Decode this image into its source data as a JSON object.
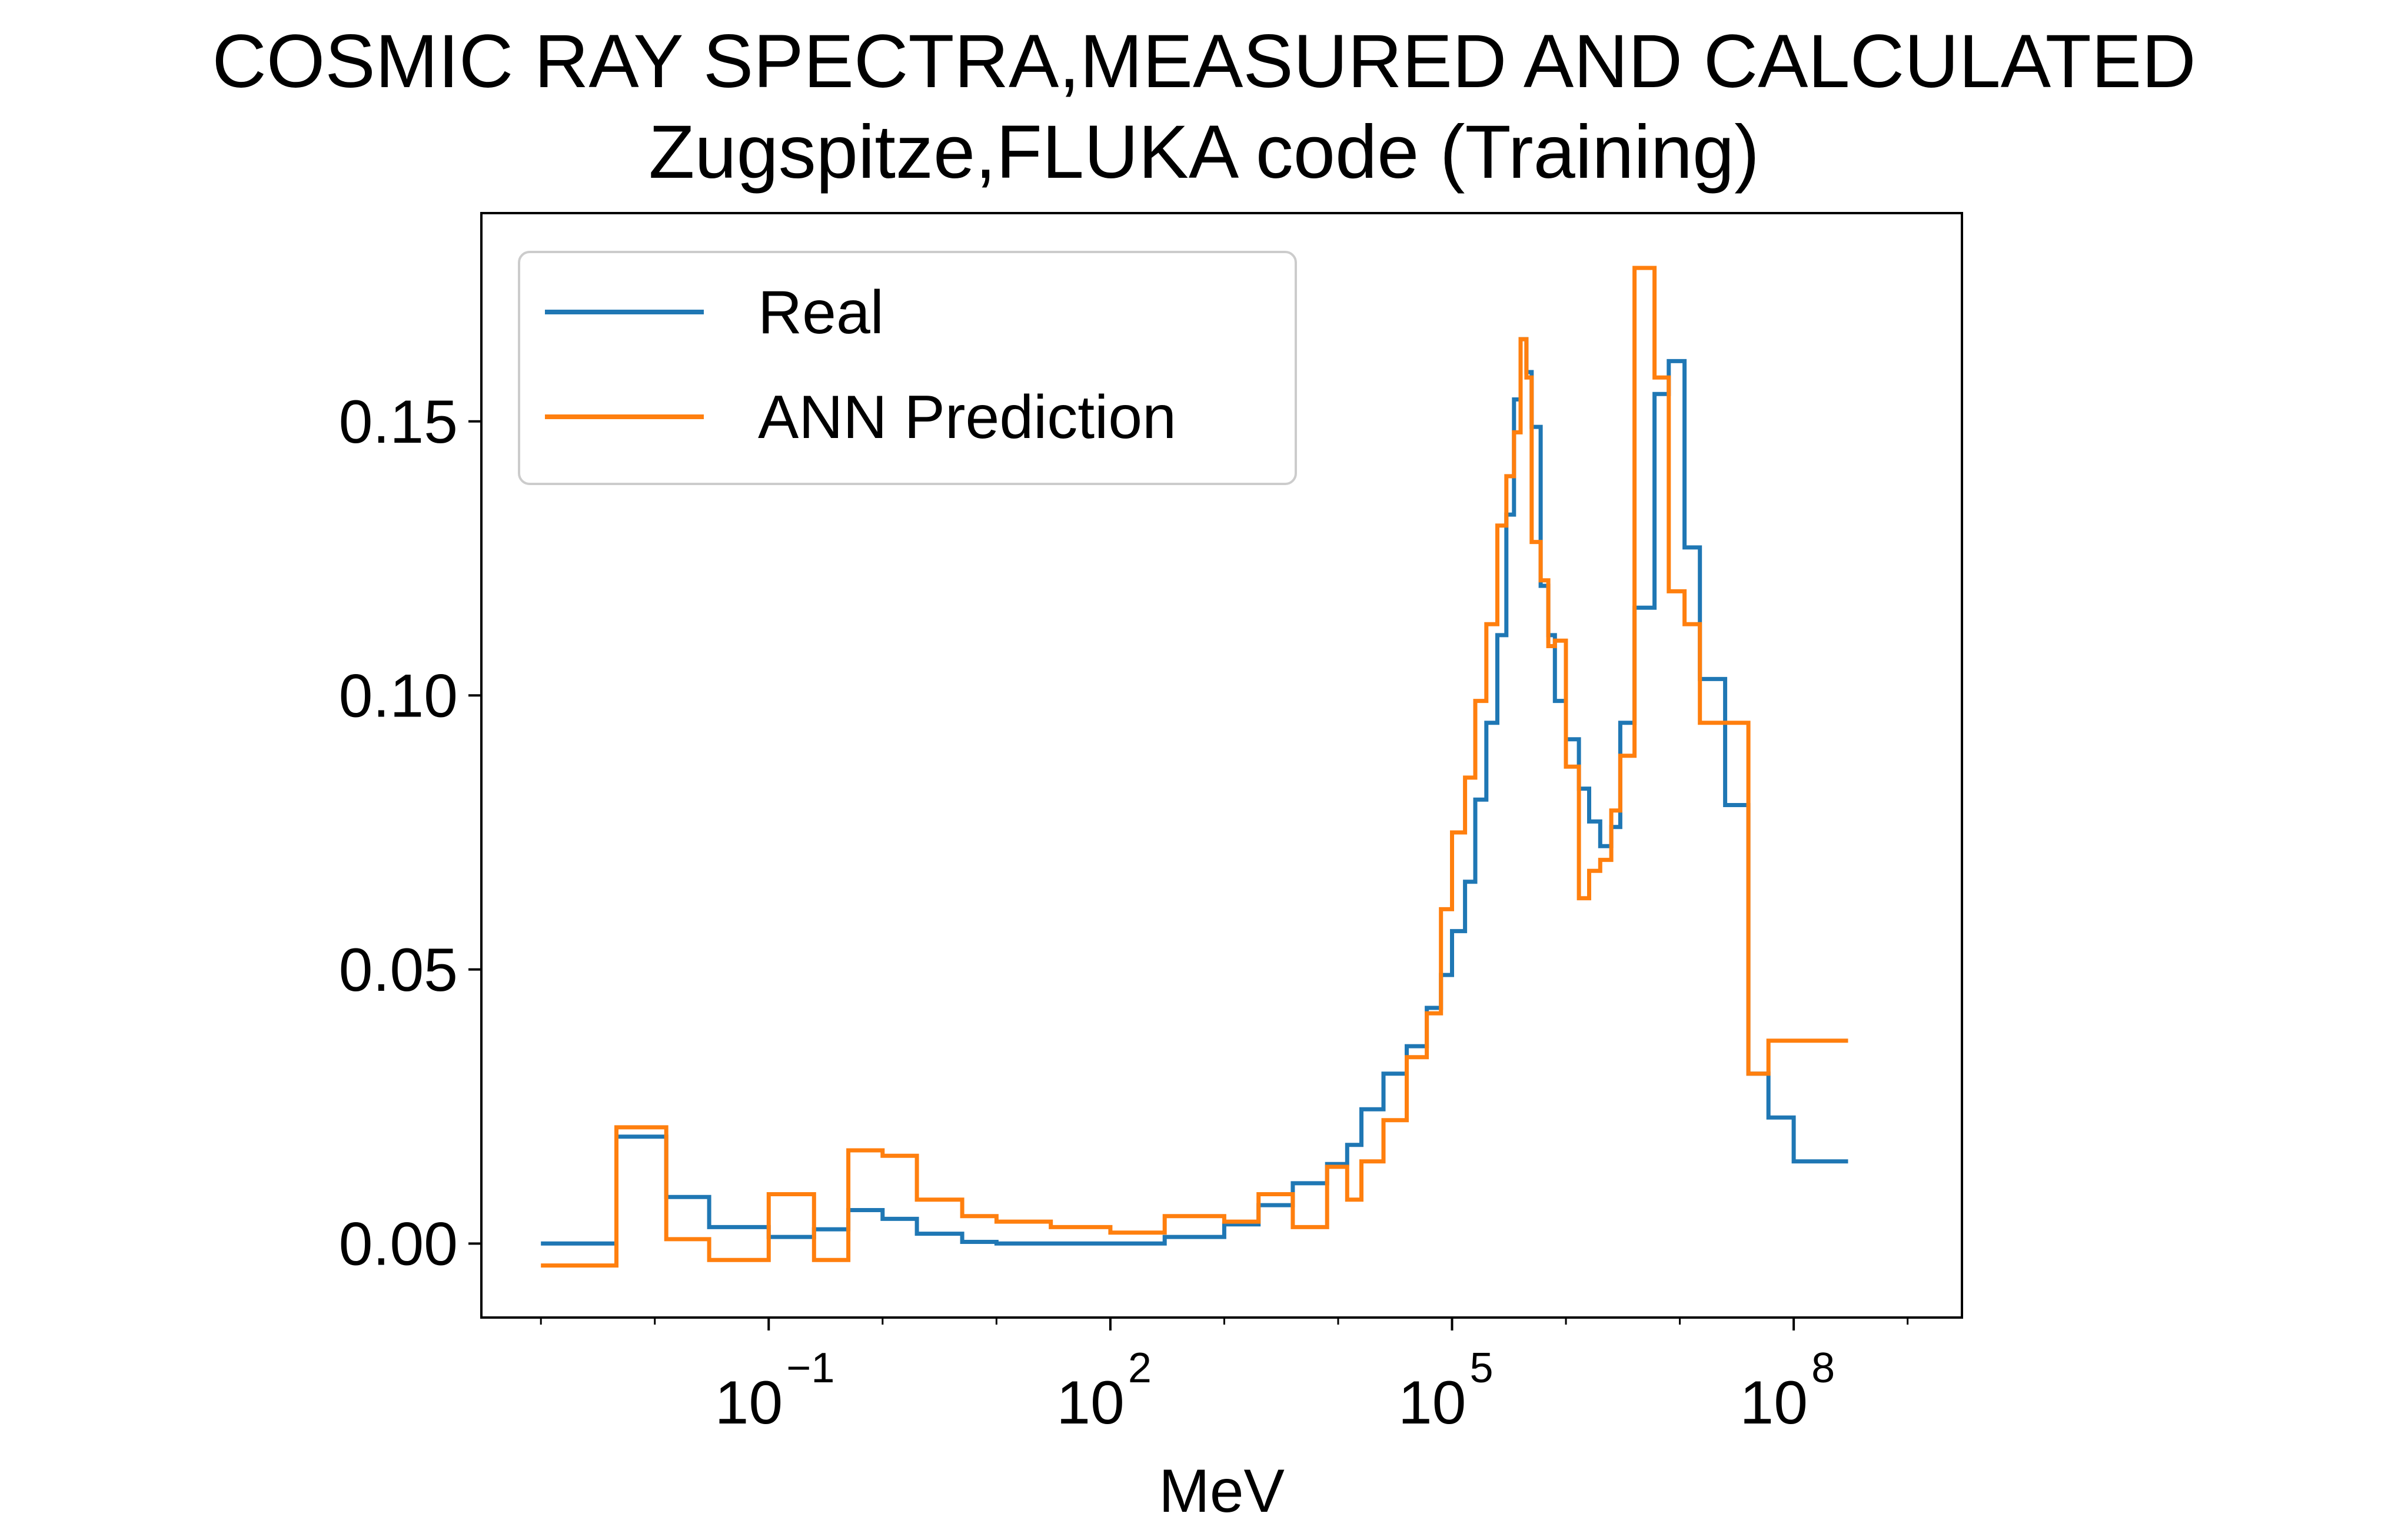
{
  "chart_data": {
    "type": "line",
    "step": "post",
    "title": "COSMIC RAY SPECTRA,MEASURED AND CALCULATED",
    "subtitle": "Zugspitze,FLUKA code (Training)",
    "xlabel": "MeV",
    "ylabel": "",
    "x_scale": "log",
    "xlim": [
      0.0003,
      3000000000.0
    ],
    "ylim": [
      -0.0135,
      0.188
    ],
    "grid": false,
    "legend_position": "top-left",
    "x_ticks": [
      {
        "value": 0.1,
        "base": "10",
        "exp": "−1"
      },
      {
        "value": 100,
        "base": "10",
        "exp": "2"
      },
      {
        "value": 100000,
        "base": "10",
        "exp": "5"
      },
      {
        "value": 100000000,
        "base": "10",
        "exp": "8"
      }
    ],
    "y_ticks": [
      {
        "value": 0.0,
        "label": "0.00"
      },
      {
        "value": 0.05,
        "label": "0.05"
      },
      {
        "value": 0.1,
        "label": "0.10"
      },
      {
        "value": 0.15,
        "label": "0.15"
      }
    ],
    "series": [
      {
        "name": "Real",
        "color": "#1f77b4",
        "x": [
          0.001,
          0.0046,
          0.0126,
          0.03,
          0.1,
          0.25,
          0.5,
          1.0,
          2.0,
          5.0,
          10,
          30,
          100,
          300,
          1000,
          2000,
          4000,
          8000,
          12000,
          16000,
          25000,
          40000,
          60000,
          80000,
          100000,
          130000,
          160000,
          200000,
          250000,
          300000,
          350000,
          400000,
          450000,
          500000,
          600000,
          700000,
          800000,
          1000000,
          1300000,
          1600000,
          2000000,
          2500000,
          3000000,
          4000000,
          6000000,
          8000000,
          11000000,
          15000000,
          25000000,
          40000000,
          60000000,
          100000000,
          150000000,
          200000000,
          250000000,
          300000000
        ],
        "y": [
          0.0,
          0.0195,
          0.0085,
          0.003,
          0.0012,
          0.0026,
          0.0061,
          0.0045,
          0.0018,
          0.0003,
          0.0,
          0.0,
          0.0,
          0.0012,
          0.0035,
          0.007,
          0.011,
          0.0145,
          0.018,
          0.0245,
          0.031,
          0.036,
          0.043,
          0.049,
          0.057,
          0.066,
          0.081,
          0.095,
          0.111,
          0.133,
          0.154,
          0.165,
          0.159,
          0.149,
          0.12,
          0.111,
          0.099,
          0.092,
          0.083,
          0.077,
          0.0725,
          0.076,
          0.095,
          0.116,
          0.155,
          0.161,
          0.127,
          0.103,
          0.08,
          0.031,
          0.023,
          0.015,
          0.015,
          0.015,
          0.015,
          0.015
        ]
      },
      {
        "name": "ANN Prediction",
        "color": "#ff7f0e",
        "x": [
          0.001,
          0.0046,
          0.0126,
          0.03,
          0.1,
          0.25,
          0.5,
          1.0,
          2.0,
          5.0,
          10,
          30,
          100,
          300,
          1000,
          2000,
          4000,
          8000,
          12000,
          16000,
          25000,
          40000,
          60000,
          80000,
          100000,
          130000,
          160000,
          200000,
          250000,
          300000,
          350000,
          400000,
          450000,
          500000,
          600000,
          700000,
          800000,
          1000000,
          1300000,
          1600000,
          2000000,
          2500000,
          3000000,
          4000000,
          6000000,
          8000000,
          11000000,
          15000000,
          25000000,
          40000000,
          60000000,
          100000000,
          150000000,
          200000000,
          250000000,
          300000000
        ],
        "y": [
          -0.004,
          0.0212,
          0.0008,
          -0.003,
          0.009,
          -0.003,
          0.017,
          0.016,
          0.008,
          0.005,
          0.004,
          0.003,
          0.002,
          0.005,
          0.004,
          0.009,
          0.003,
          0.014,
          0.008,
          0.015,
          0.0225,
          0.034,
          0.042,
          0.061,
          0.075,
          0.085,
          0.099,
          0.113,
          0.131,
          0.14,
          0.148,
          0.165,
          0.158,
          0.128,
          0.121,
          0.109,
          0.11,
          0.087,
          0.063,
          0.068,
          0.07,
          0.079,
          0.089,
          0.178,
          0.158,
          0.119,
          0.113,
          0.095,
          0.095,
          0.031,
          0.037,
          0.037,
          0.037,
          0.037,
          0.037,
          0.037
        ]
      }
    ]
  }
}
